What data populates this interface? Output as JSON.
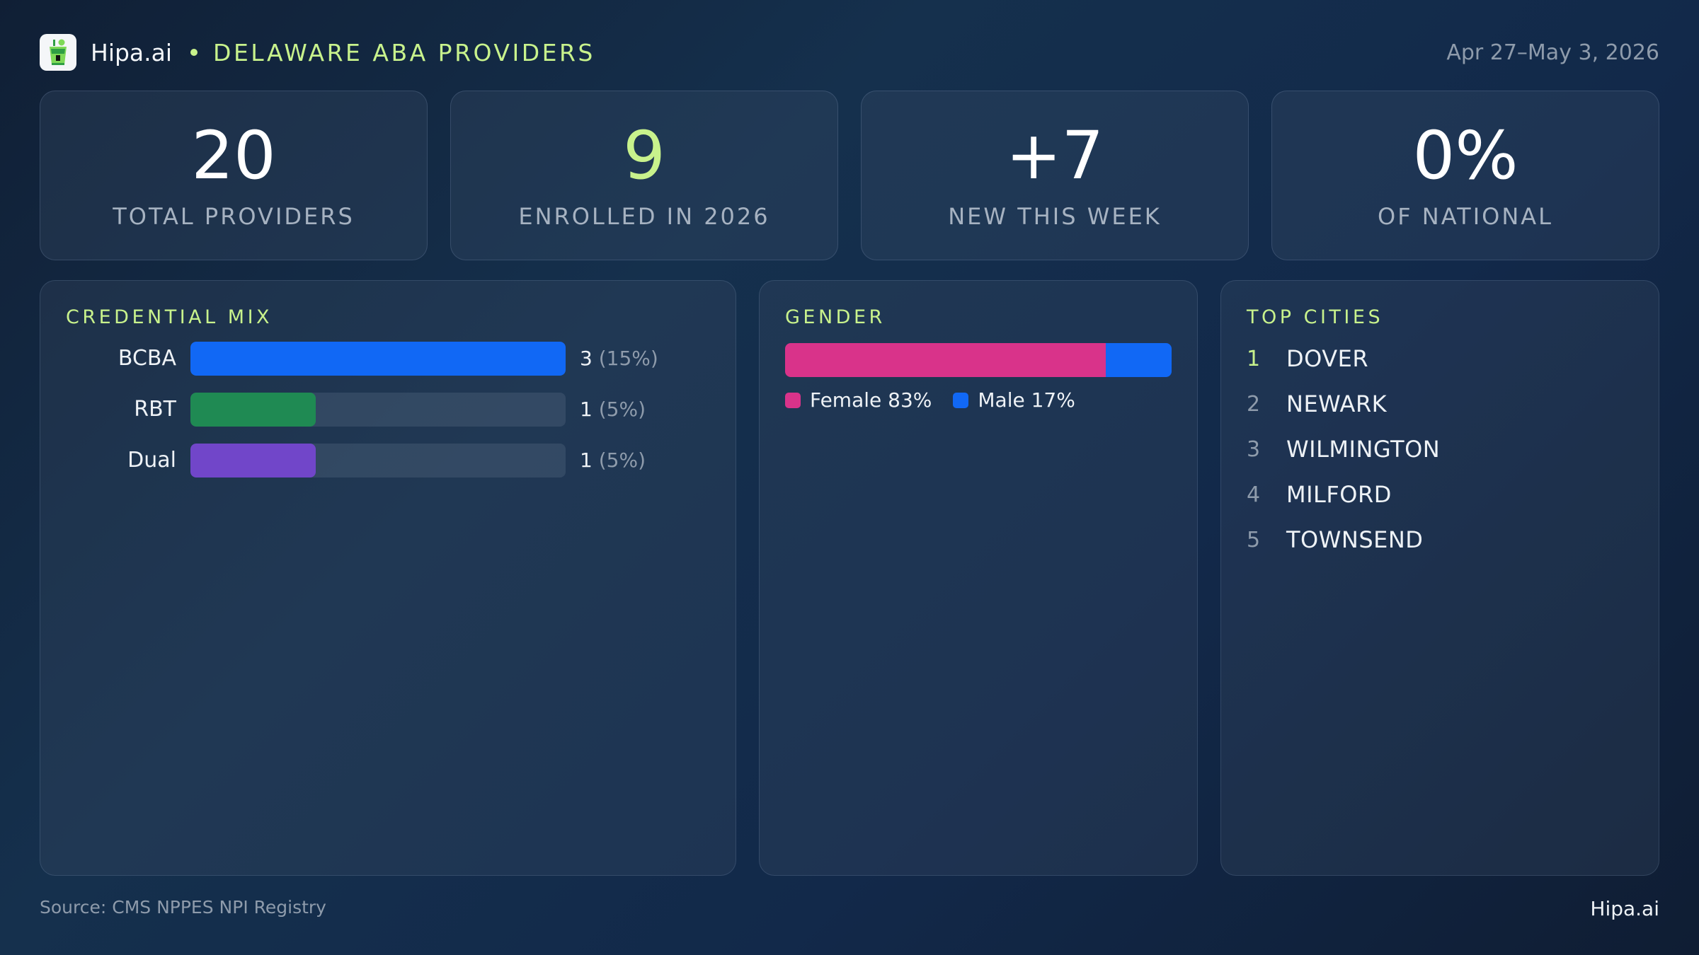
{
  "header": {
    "brand": "Hipa.ai",
    "title": "DELAWARE ABA PROVIDERS",
    "date_range": "Apr 27–May 3, 2026",
    "logo_icon": "cocktail-glass-icon"
  },
  "kpis": [
    {
      "value": "20",
      "label": "TOTAL PROVIDERS"
    },
    {
      "value": "9",
      "label": "ENROLLED IN 2026",
      "accent": "#c8f28c"
    },
    {
      "value": "+7",
      "label": "NEW THIS WEEK"
    },
    {
      "value": "0%",
      "label": "OF NATIONAL"
    }
  ],
  "panels": {
    "credential_title": "CREDENTIAL MIX",
    "gender_title": "GENDER",
    "cities_title": "TOP CITIES"
  },
  "chart_data": [
    {
      "type": "bar",
      "title": "CREDENTIAL MIX",
      "orientation": "horizontal",
      "categories": [
        "BCBA",
        "RBT",
        "Dual"
      ],
      "values": [
        3,
        1,
        1
      ],
      "value_labels": [
        "3",
        "1",
        "1"
      ],
      "percent_labels": [
        "(15%)",
        "(5%)",
        "(5%)"
      ],
      "colors": [
        "#1168f5",
        "#1f8a53",
        "#7146c9"
      ]
    },
    {
      "type": "bar",
      "title": "GENDER",
      "stacked": true,
      "categories": [
        "Female",
        "Male"
      ],
      "values": [
        83,
        17
      ],
      "legend_labels": [
        "Female 83%",
        "Male 17%"
      ],
      "colors": [
        "#d9338a",
        "#1168f5"
      ],
      "legend": "bottom"
    },
    {
      "type": "table",
      "title": "TOP CITIES",
      "columns": [
        "rank",
        "city"
      ],
      "rows": [
        [
          "1",
          "DOVER"
        ],
        [
          "2",
          "NEWARK"
        ],
        [
          "3",
          "WILMINGTON"
        ],
        [
          "4",
          "MILFORD"
        ],
        [
          "5",
          "TOWNSEND"
        ]
      ]
    }
  ],
  "footer": {
    "source": "Source: CMS NPPES NPI Registry",
    "brand": "Hipa.ai"
  }
}
